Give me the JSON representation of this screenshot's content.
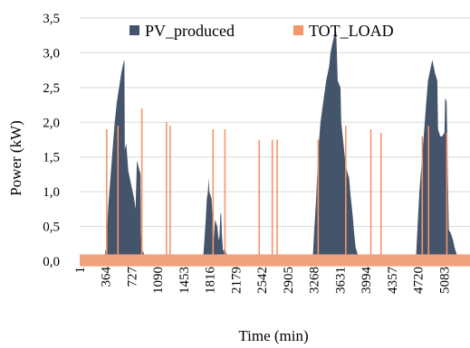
{
  "chart_data": {
    "type": "area",
    "xlabel": "Time (min)",
    "ylabel": "Power (kW)",
    "ylim": [
      0,
      3.5
    ],
    "xlim": [
      1,
      5446
    ],
    "grid": "horizontal",
    "legend_position": "top",
    "x_ticks": [
      "1",
      "364",
      "727",
      "1090",
      "1453",
      "1816",
      "2179",
      "2542",
      "2905",
      "3268",
      "3631",
      "3994",
      "4357",
      "4720",
      "5083"
    ],
    "y_ticks": [
      "0,0",
      "0,5",
      "1,0",
      "1,5",
      "2,0",
      "2,5",
      "3,0",
      "3,5"
    ],
    "colors": {
      "pv": "#44546a",
      "load": "#f4956b",
      "baseline": "#f0a27c",
      "grid": "#d9d9d9"
    },
    "series": [
      {
        "name": "PV_produced",
        "kind": "area",
        "x": [
          340,
          370,
          400,
          430,
          460,
          490,
          520,
          550,
          580,
          610,
          625,
          630,
          640,
          650,
          680,
          700,
          720,
          740,
          760,
          780,
          800,
          850,
          855,
          870,
          880,
          900,
          925,
          945,
          960,
          990,
          1000,
          1720,
          1740,
          1760,
          1775,
          1790,
          1800,
          1810,
          1840,
          1850,
          1870,
          1890,
          1920,
          1940,
          1950,
          1965,
          1975,
          1985,
          2000,
          2030,
          2050,
          2090,
          2100,
          2120,
          2140,
          2180,
          2200,
          3250,
          3270,
          3300,
          3330,
          3360,
          3400,
          3440,
          3480,
          3500,
          3520,
          3540,
          3570,
          3580,
          3600,
          3640,
          3650,
          3700,
          3730,
          3760,
          3780,
          3810,
          3830,
          3850,
          3880,
          3900,
          3930,
          4690,
          4710,
          4740,
          4770,
          4800,
          4830,
          4860,
          4890,
          4920,
          4960,
          4990,
          5000,
          5030,
          5060,
          5090,
          5100,
          5120,
          5150,
          5180,
          5210,
          5230,
          5260,
          5290
        ],
        "y": [
          0,
          0.2,
          0.8,
          1.2,
          1.6,
          2.0,
          2.3,
          2.5,
          2.7,
          2.85,
          2.9,
          1.6,
          1.65,
          1.7,
          1.3,
          1.2,
          1.1,
          1.0,
          0.9,
          0.75,
          1.45,
          1.25,
          0.4,
          0.2,
          0.15,
          0.1,
          0.05,
          0.03,
          0.02,
          0.01,
          0,
          0,
          0.3,
          0.6,
          0.9,
          1.0,
          1.2,
          1.0,
          0.9,
          0.7,
          0.3,
          0.6,
          0.5,
          0.3,
          0.35,
          0.7,
          0.68,
          0.4,
          0.15,
          0.18,
          0.1,
          0.05,
          0.02,
          0.1,
          0.05,
          0.02,
          0,
          0,
          0.4,
          0.9,
          1.6,
          2.0,
          2.3,
          2.6,
          2.8,
          3.0,
          3.1,
          3.2,
          3.3,
          3.3,
          2.6,
          2.5,
          2.0,
          1.5,
          1.3,
          1.2,
          0.95,
          0.65,
          0.4,
          0.2,
          0.1,
          0.05,
          0,
          0,
          0.4,
          1.0,
          1.4,
          1.8,
          2.2,
          2.6,
          2.75,
          2.9,
          2.7,
          2.6,
          1.9,
          1.8,
          1.8,
          1.85,
          2.35,
          2.3,
          0.45,
          0.4,
          0.3,
          0.2,
          0.1,
          0.05
        ]
      },
      {
        "name": "TOT_LOAD",
        "kind": "spikes",
        "x": [
          378,
          535,
          868,
          1212,
          1262,
          1862,
          2027,
          2505,
          2688,
          2756,
          3328,
          3713,
          4063,
          4205,
          4780,
          4868,
          5123
        ],
        "y": [
          1.9,
          1.95,
          2.2,
          2.0,
          1.95,
          1.9,
          1.9,
          1.75,
          1.75,
          1.75,
          1.75,
          1.95,
          1.9,
          1.85,
          1.8,
          1.95,
          1.85
        ]
      }
    ],
    "baseline_load": 0.06
  }
}
